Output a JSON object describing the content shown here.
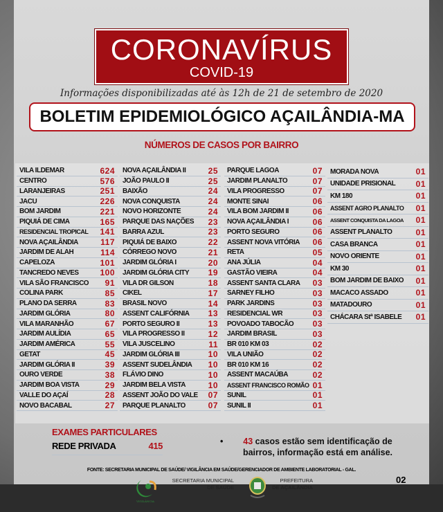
{
  "banner": {
    "title": "CORONAVÍRUS",
    "subtitle": "COVID-19"
  },
  "info": "Informações disponibilizadas até às 12h  de  21 de  setembro de 2020",
  "boletim": "BOLETIM EPIDEMIOLÓGICO AÇAILÂNDIA-MA",
  "section_title": "NÚMEROS DE CASOS POR BAIRRO",
  "columns": [
    [
      [
        "VILA ILDEMAR",
        "624"
      ],
      [
        "CENTRO",
        "576"
      ],
      [
        "LARANJEIRAS",
        "251"
      ],
      [
        "JACU",
        "226"
      ],
      [
        "BOM JARDIM",
        "221"
      ],
      [
        "PIQUIÁ DE CIMA",
        "165"
      ],
      [
        "RESIDENCIAL TROPICAL",
        "141"
      ],
      [
        "NOVA AÇAILÂNDIA",
        "117"
      ],
      [
        "JARDIM DE ALAH",
        "114"
      ],
      [
        "CAPELOZA",
        "101"
      ],
      [
        "TANCREDO NEVES",
        "100"
      ],
      [
        "VILA SÃO FRANCISCO",
        "91"
      ],
      [
        "COLINA PARK",
        "85"
      ],
      [
        "PLANO DA SERRA",
        "83"
      ],
      [
        "JARDIM GLÓRIA",
        "80"
      ],
      [
        "VILA MARANHÃO",
        "67"
      ],
      [
        "JARDIM AULÍDIA",
        "65"
      ],
      [
        "JARDIM AMÉRICA",
        "55"
      ],
      [
        "GETAT",
        "45"
      ],
      [
        "JARDIM GLÓRIA II",
        "39"
      ],
      [
        "OURO VERDE",
        "38"
      ],
      [
        "JARDIM BOA VISTA",
        "29"
      ],
      [
        "VALLE DO AÇAÍ",
        "28"
      ],
      [
        "NOVO BACABAL",
        "27"
      ]
    ],
    [
      [
        "NOVA AÇAILÂNDIA II",
        "25"
      ],
      [
        "JOÃO PAULO II",
        "25"
      ],
      [
        "BAIXÃO",
        "24"
      ],
      [
        "NOVA CONQUISTA",
        "24"
      ],
      [
        "NOVO HORIZONTE",
        "24"
      ],
      [
        "PARQUE DAS NAÇÕES",
        "23"
      ],
      [
        "BARRA AZUL",
        "23"
      ],
      [
        "PIQUIÁ DE BAIXO",
        "22"
      ],
      [
        "CÓRREGO NOVO",
        "21"
      ],
      [
        "JARDIM GLÓRIA I",
        "20"
      ],
      [
        "JARDIM GLÓRIA CITY",
        "19"
      ],
      [
        "VILA DR GILSON",
        "18"
      ],
      [
        "CIKEL",
        "17"
      ],
      [
        "BRASIL NOVO",
        "14"
      ],
      [
        "ASSENT CALIFÓRNIA",
        "13"
      ],
      [
        "PORTO SEGURO II",
        "13"
      ],
      [
        "VILA PROGRESSO II",
        "12"
      ],
      [
        "VILA JUSCELINO",
        "11"
      ],
      [
        "JARDIM GLÓRIA III",
        "10"
      ],
      [
        "ASSENT SUDELÂNDIA",
        "10"
      ],
      [
        "FLÁVIO DINO",
        "10"
      ],
      [
        "JARDIM BELA VISTA",
        "10"
      ],
      [
        "ASSENT JOÃO DO VALE",
        "07"
      ],
      [
        "PARQUE PLANALTO",
        "07"
      ]
    ],
    [
      [
        "PARQUE LAGOA",
        "07"
      ],
      [
        "JARDIM PLANALTO",
        "07"
      ],
      [
        "VILA PROGRESSO",
        "07"
      ],
      [
        "MONTE SINAI",
        "06"
      ],
      [
        "VILA BOM JARDIM II",
        "06"
      ],
      [
        "NOVA AÇAILÂNDIA I",
        "06"
      ],
      [
        "PORTO SEGURO",
        "06"
      ],
      [
        "ASSENT NOVA VITÓRIA",
        "06"
      ],
      [
        "RETA",
        "05"
      ],
      [
        "ANA JÚLIA",
        "04"
      ],
      [
        "GASTÃO VIEIRA",
        "04"
      ],
      [
        "ASSENT SANTA CLARA",
        "03"
      ],
      [
        "SARNEY FILHO",
        "03"
      ],
      [
        "PARK JARDINS",
        "03"
      ],
      [
        "RESIDENCIAL WR",
        "03"
      ],
      [
        "POVOADO TABOCÃO",
        "03"
      ],
      [
        "JARDIM BRASIL",
        "03"
      ],
      [
        "BR 010 KM 03",
        "02"
      ],
      [
        "VILA UNIÃO",
        "02"
      ],
      [
        "BR 010 KM 16",
        "02"
      ],
      [
        "ASSENT MACAÚBA",
        "02"
      ],
      [
        "ASSENT FRANCISCO ROMÃO",
        "01"
      ],
      [
        "SUNIL",
        "01"
      ],
      [
        "SUNIL II",
        "01"
      ]
    ],
    [
      [
        "MORADA NOVA",
        "01"
      ],
      [
        "UNIDADE PRISIONAL",
        "01"
      ],
      [
        "KM 180",
        "01"
      ],
      [
        "ASSENT AGRO PLANALTO",
        "01"
      ],
      [
        "ASSENT CONQUISTA DA LAGOA",
        "01"
      ],
      [
        "ASSENT PLANALTO",
        "01"
      ],
      [
        "CASA BRANCA",
        "01"
      ],
      [
        "NOVO ORIENTE",
        "01"
      ],
      [
        "KM 30",
        "01"
      ],
      [
        "BOM JARDIM DE BAIXO",
        "01"
      ],
      [
        "MACACO ASSADO",
        "01"
      ],
      [
        "MATADOURO",
        "01"
      ],
      [
        "CHÁCARA Stª ISABELE",
        "01"
      ]
    ]
  ],
  "exames": {
    "title": "EXAMES PARTICULARES",
    "label": "REDE PRIVADA",
    "value": "415"
  },
  "note": {
    "bullet": "•",
    "number": "43",
    "text": " casos estão sem identificação de bairros, informação está em análise."
  },
  "fonte": "FONTE: SECRETARIA MUNICIPAL DE SAÚDE/ VIGILÂNCIA EM SAÚDE/GERENCIADOR DE AMBIENTE LABORATORIAL - GAL.",
  "page_number": "02",
  "logos": {
    "vigilancia": "VIGILÂNCIA EM SAÚDE",
    "secretaria_line1": "SECRETARIA MUNICIPAL",
    "secretaria_line2_prefix": "DE ",
    "secretaria_line2_bold": "SAÚDE",
    "prefeitura_line1": "PREFEITURA",
    "prefeitura_line2": "DE AÇAILÂNDIA"
  },
  "colors": {
    "red": "#b1121a",
    "banner": "#a10e14"
  }
}
